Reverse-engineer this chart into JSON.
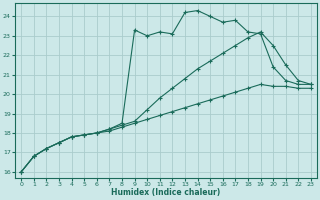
{
  "xlabel": "Humidex (Indice chaleur)",
  "background_color": "#cce8e8",
  "grid_color": "#aacccc",
  "line_color": "#1a6b5a",
  "xlim": [
    -0.5,
    23.5
  ],
  "ylim": [
    15.7,
    24.7
  ],
  "yticks": [
    16,
    17,
    18,
    19,
    20,
    21,
    22,
    23,
    24
  ],
  "xticks": [
    0,
    1,
    2,
    3,
    4,
    5,
    6,
    7,
    8,
    9,
    10,
    11,
    12,
    13,
    14,
    15,
    16,
    17,
    18,
    19,
    20,
    21,
    22,
    23
  ],
  "line_bottom_x": [
    0,
    1,
    2,
    3,
    4,
    5,
    6,
    7,
    8,
    9,
    10,
    11,
    12,
    13,
    14,
    15,
    16,
    17,
    18,
    19,
    20,
    21,
    22,
    23
  ],
  "line_bottom_y": [
    16.0,
    16.8,
    17.2,
    17.5,
    17.8,
    17.9,
    18.0,
    18.1,
    18.3,
    18.5,
    18.7,
    18.9,
    19.1,
    19.3,
    19.5,
    19.7,
    19.9,
    20.1,
    20.3,
    20.5,
    20.4,
    20.4,
    20.3,
    20.3
  ],
  "line_mid_x": [
    0,
    1,
    2,
    3,
    4,
    5,
    6,
    7,
    8,
    9,
    10,
    11,
    12,
    13,
    14,
    15,
    16,
    17,
    18,
    19,
    20,
    21,
    22,
    23
  ],
  "line_mid_y": [
    16.0,
    16.8,
    17.2,
    17.5,
    17.8,
    17.9,
    18.0,
    18.2,
    18.4,
    18.6,
    19.2,
    19.8,
    20.3,
    20.8,
    21.3,
    21.7,
    22.1,
    22.5,
    22.9,
    23.2,
    22.5,
    21.5,
    20.7,
    20.5
  ],
  "line_top_x": [
    0,
    1,
    2,
    3,
    4,
    5,
    6,
    7,
    8,
    9,
    10,
    11,
    12,
    13,
    14,
    15,
    16,
    17,
    18,
    19,
    20,
    21,
    22,
    23
  ],
  "line_top_y": [
    16.0,
    16.8,
    17.2,
    17.5,
    17.8,
    17.9,
    18.0,
    18.2,
    18.5,
    23.3,
    23.0,
    23.2,
    23.1,
    24.2,
    24.3,
    24.0,
    23.7,
    23.8,
    23.2,
    23.1,
    21.4,
    20.7,
    20.5,
    20.5
  ]
}
